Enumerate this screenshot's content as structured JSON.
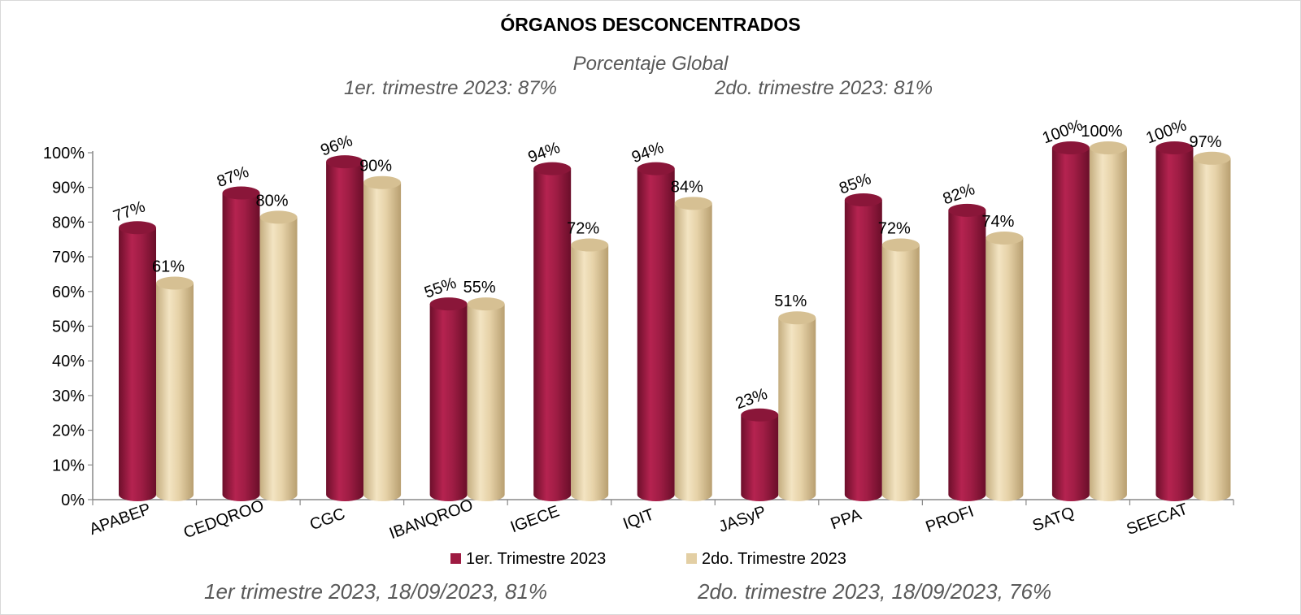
{
  "chart_data": {
    "type": "bar",
    "title": "ÓRGANOS DESCONCENTRADOS",
    "subtitle": "Porcentaje Global",
    "subtitle_lines": [
      "1er. trimestre 2023: 87%",
      "2do. trimestre 2023: 81%"
    ],
    "footer_lines": [
      "1er trimestre  2023,  18/09/2023, 81%",
      "2do. trimestre 2023, 18/09/2023, 76%"
    ],
    "categories": [
      "APABEP",
      "CEDQROO",
      "CGC",
      "IBANQROO",
      "IGECE",
      "IQIT",
      "JASyP",
      "PPA",
      "PROFI",
      "SATQ",
      "SEECAT"
    ],
    "series": [
      {
        "name": "1er. Trimestre 2023",
        "values": [
          77,
          87,
          96,
          55,
          94,
          94,
          23,
          85,
          82,
          100,
          100
        ],
        "color": "#9e1b42"
      },
      {
        "name": "2do. Trimestre 2023",
        "values": [
          61,
          80,
          90,
          55,
          72,
          84,
          51,
          72,
          74,
          100,
          97
        ],
        "color": "#e3cfa4"
      }
    ],
    "yticks": [
      "0%",
      "10%",
      "20%",
      "30%",
      "40%",
      "50%",
      "60%",
      "70%",
      "80%",
      "90%",
      "100%"
    ],
    "ylim": [
      0,
      100
    ],
    "grid": false,
    "legend_position": "bottom"
  }
}
